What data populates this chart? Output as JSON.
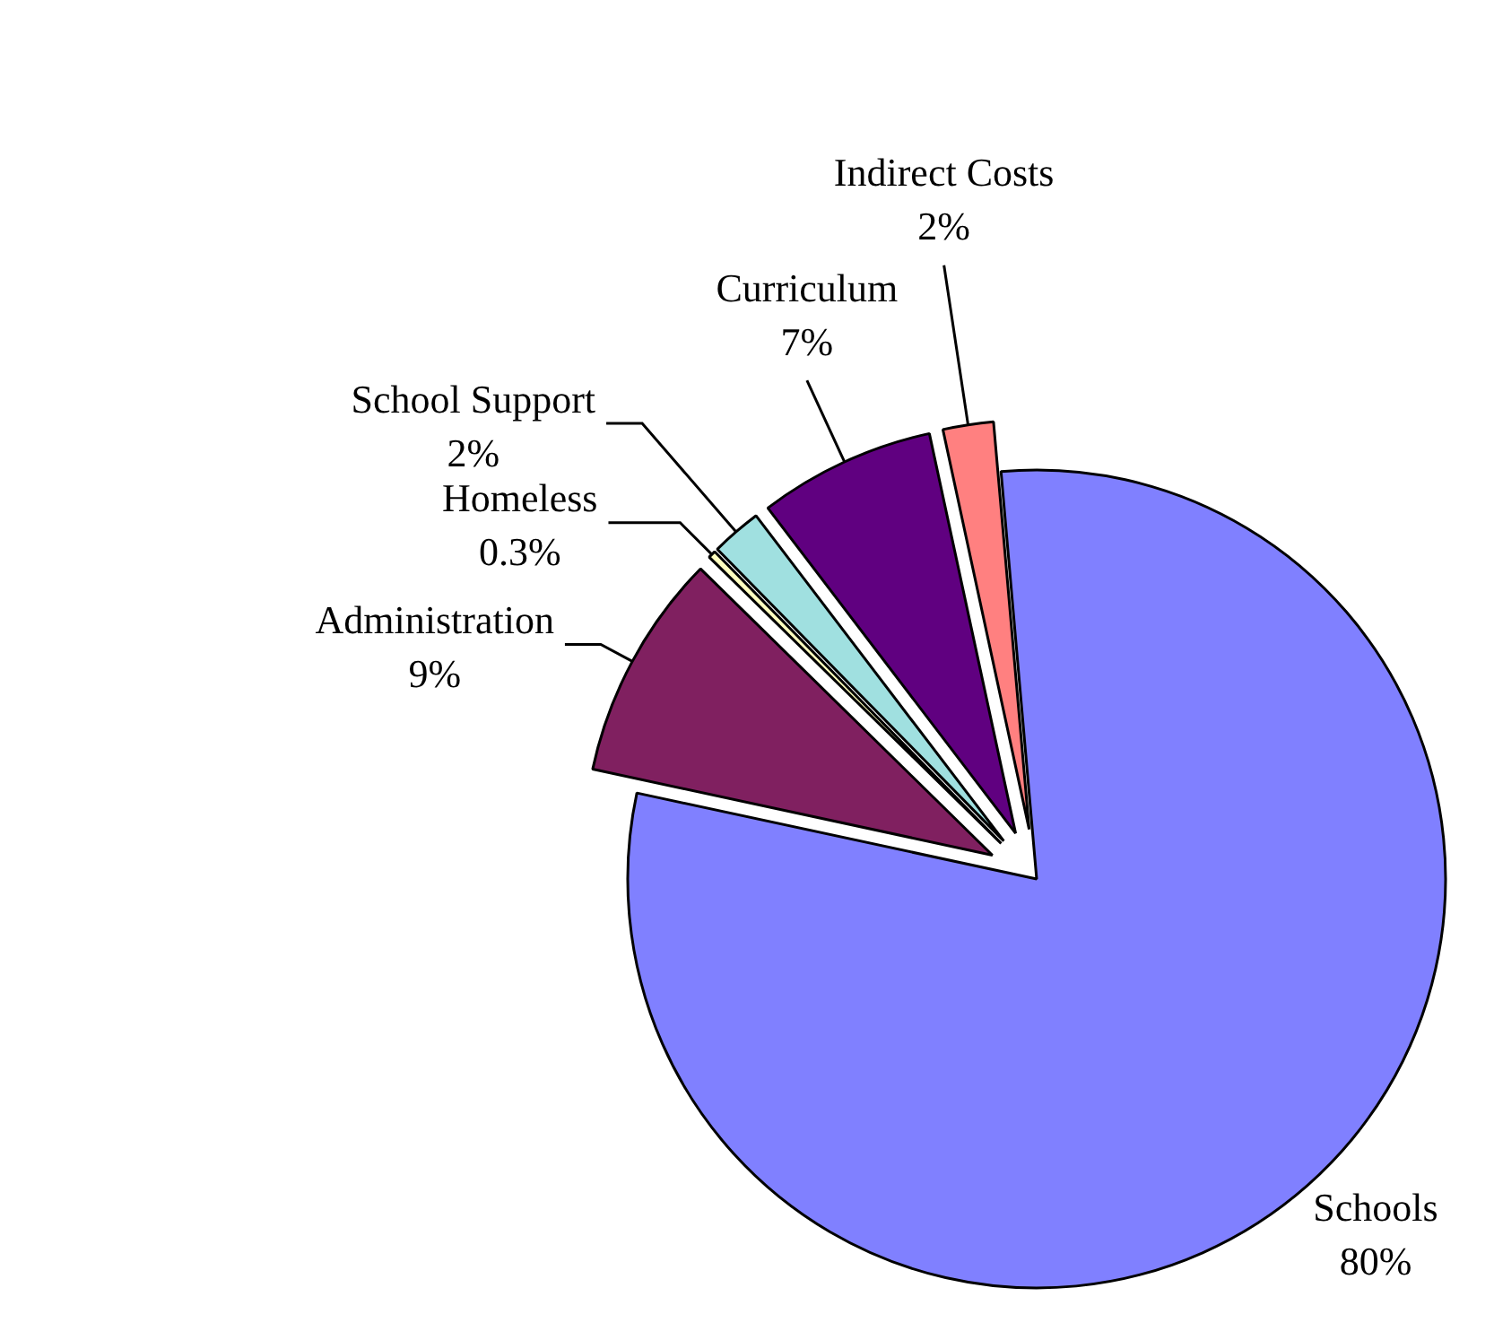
{
  "chart_data": {
    "type": "pie",
    "categories": [
      "Schools",
      "Administration",
      "Homeless",
      "School Support",
      "Curriculum",
      "Indirect Costs"
    ],
    "values": [
      80,
      9,
      0.3,
      2,
      7,
      2
    ],
    "value_labels": [
      "80%",
      "9%",
      "0.3%",
      "2%",
      "7%",
      "2%"
    ],
    "colors": [
      "#8080ff",
      "#802060",
      "#ffffc0",
      "#a0e0e0",
      "#600080",
      "#ff8080"
    ],
    "legend": false
  }
}
